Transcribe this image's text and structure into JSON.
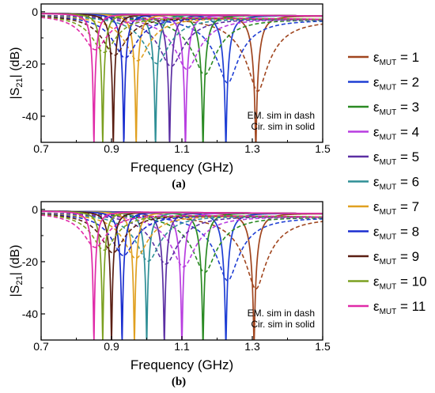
{
  "chart_data": [
    {
      "type": "line",
      "panel_label": "(a)",
      "xlabel": "Frequency (GHz)",
      "ylabel": "|S21| (dB)",
      "xlim": [
        0.7,
        1.5
      ],
      "ylim": [
        -50,
        3
      ],
      "x_ticks": [
        "0.7",
        "0.9",
        "1.1",
        "1.3",
        "1.5"
      ],
      "y_ticks": [
        "0",
        "-20",
        "-40"
      ],
      "x_tick_values": [
        0.7,
        0.9,
        1.1,
        1.3,
        1.5
      ],
      "y_tick_values": [
        0,
        -20,
        -40
      ],
      "annotation": [
        "EM. sim in dash",
        "Cir. sim in solid"
      ],
      "series": [
        {
          "name": "εMUT = 1",
          "color": "#a0451e",
          "resonance_ghz": 1.31,
          "dip_db_solid": -50,
          "dip_db_dash": -28
        },
        {
          "name": "εMUT = 2",
          "color": "#1f3fd4",
          "resonance_ghz": 1.225,
          "dip_db_solid": -50,
          "dip_db_dash": -25
        },
        {
          "name": "εMUT = 3",
          "color": "#2a8a23",
          "resonance_ghz": 1.16,
          "dip_db_solid": -50,
          "dip_db_dash": -22
        },
        {
          "name": "εMUT = 4",
          "color": "#b83de0",
          "resonance_ghz": 1.11,
          "dip_db_solid": -50,
          "dip_db_dash": -20
        },
        {
          "name": "εMUT = 5",
          "color": "#5b2fa3",
          "resonance_ghz": 1.065,
          "dip_db_solid": -50,
          "dip_db_dash": -19
        },
        {
          "name": "εMUT = 6",
          "color": "#2f8f96",
          "resonance_ghz": 1.025,
          "dip_db_solid": -50,
          "dip_db_dash": -18
        },
        {
          "name": "εMUT = 7",
          "color": "#e0a020",
          "resonance_ghz": 0.97,
          "dip_db_solid": -50,
          "dip_db_dash": -17
        },
        {
          "name": "εMUT = 8",
          "color": "#1a2ed0",
          "resonance_ghz": 0.935,
          "dip_db_solid": -50,
          "dip_db_dash": -16
        },
        {
          "name": "εMUT = 9",
          "color": "#5a1e12",
          "resonance_ghz": 0.905,
          "dip_db_solid": -50,
          "dip_db_dash": -15
        },
        {
          "name": "εMUT = 10",
          "color": "#7ba020",
          "resonance_ghz": 0.875,
          "dip_db_solid": -50,
          "dip_db_dash": -14
        },
        {
          "name": "εMUT = 11",
          "color": "#e02aa8",
          "resonance_ghz": 0.85,
          "dip_db_solid": -50,
          "dip_db_dash": -13
        }
      ]
    },
    {
      "type": "line",
      "panel_label": "(b)",
      "xlabel": "Frequency (GHz)",
      "ylabel": "|S21| (dB)",
      "xlim": [
        0.7,
        1.5
      ],
      "ylim": [
        -50,
        3
      ],
      "x_ticks": [
        "0.7",
        "0.9",
        "1.1",
        "1.3",
        "1.5"
      ],
      "y_ticks": [
        "0",
        "-20",
        "-40"
      ],
      "x_tick_values": [
        0.7,
        0.9,
        1.1,
        1.3,
        1.5
      ],
      "y_tick_values": [
        0,
        -20,
        -40
      ],
      "annotation": [
        "EM. sim in dash",
        "Cir. sim in solid"
      ],
      "series": [
        {
          "name": "εMUT = 1",
          "color": "#a0451e",
          "resonance_ghz": 1.305,
          "dip_db_solid": -50,
          "dip_db_dash": -28
        },
        {
          "name": "εMUT = 2",
          "color": "#1f3fd4",
          "resonance_ghz": 1.225,
          "dip_db_solid": -50,
          "dip_db_dash": -25
        },
        {
          "name": "εMUT = 3",
          "color": "#2a8a23",
          "resonance_ghz": 1.16,
          "dip_db_solid": -50,
          "dip_db_dash": -22
        },
        {
          "name": "εMUT = 4",
          "color": "#b83de0",
          "resonance_ghz": 1.1,
          "dip_db_solid": -50,
          "dip_db_dash": -20
        },
        {
          "name": "εMUT = 5",
          "color": "#5b2fa3",
          "resonance_ghz": 1.05,
          "dip_db_solid": -50,
          "dip_db_dash": -19
        },
        {
          "name": "εMUT = 6",
          "color": "#2f8f96",
          "resonance_ghz": 1.0,
          "dip_db_solid": -50,
          "dip_db_dash": -18
        },
        {
          "name": "εMUT = 7",
          "color": "#e0a020",
          "resonance_ghz": 0.965,
          "dip_db_solid": -50,
          "dip_db_dash": -17
        },
        {
          "name": "εMUT = 8",
          "color": "#1a2ed0",
          "resonance_ghz": 0.93,
          "dip_db_solid": -50,
          "dip_db_dash": -16
        },
        {
          "name": "εMUT = 9",
          "color": "#5a1e12",
          "resonance_ghz": 0.9,
          "dip_db_solid": -50,
          "dip_db_dash": -15
        },
        {
          "name": "εMUT = 10",
          "color": "#7ba020",
          "resonance_ghz": 0.875,
          "dip_db_solid": -50,
          "dip_db_dash": -14
        },
        {
          "name": "εMUT = 11",
          "color": "#e02aa8",
          "resonance_ghz": 0.85,
          "dip_db_solid": -50,
          "dip_db_dash": -13
        }
      ]
    }
  ],
  "legend": {
    "placement": "right",
    "entries": [
      {
        "symbol": "ε",
        "sub": "MUT",
        "value": "= 1",
        "color": "#a0451e"
      },
      {
        "symbol": "ε",
        "sub": "MUT",
        "value": "= 2",
        "color": "#1f3fd4"
      },
      {
        "symbol": "ε",
        "sub": "MUT",
        "value": "= 3",
        "color": "#2a8a23"
      },
      {
        "symbol": "ε",
        "sub": "MUT",
        "value": "= 4",
        "color": "#b83de0"
      },
      {
        "symbol": "ε",
        "sub": "MUT",
        "value": "= 5",
        "color": "#5b2fa3"
      },
      {
        "symbol": "ε",
        "sub": "MUT",
        "value": "= 6",
        "color": "#2f8f96"
      },
      {
        "symbol": "ε",
        "sub": "MUT",
        "value": "= 7",
        "color": "#e0a020"
      },
      {
        "symbol": "ε",
        "sub": "MUT",
        "value": "= 8",
        "color": "#1a2ed0"
      },
      {
        "symbol": "ε",
        "sub": "MUT",
        "value": "= 9",
        "color": "#5a1e12"
      },
      {
        "symbol": "ε",
        "sub": "MUT",
        "value": "= 10",
        "color": "#7ba020"
      },
      {
        "symbol": "ε",
        "sub": "MUT",
        "value": "= 11",
        "color": "#e02aa8"
      }
    ]
  }
}
